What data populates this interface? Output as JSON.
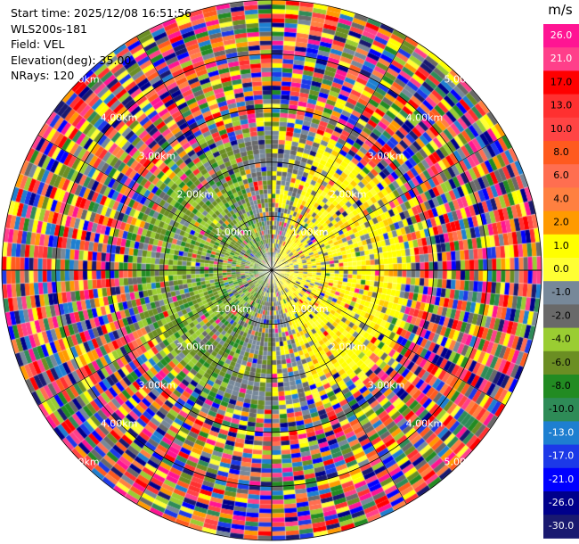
{
  "header": {
    "start_time": "Start time: 2025/12/08 16:51:56",
    "instrument": "WLS200s-181",
    "field": "Field: VEL",
    "elevation": "Elevation(deg): 35.00",
    "nrays": "NRays: 120"
  },
  "chart_data": {
    "type": "heatmap",
    "projection": "polar-ppi",
    "field": "VEL",
    "elevation_deg": 35.0,
    "nrays": 120,
    "range_rings_km": [
      1,
      2,
      3,
      4,
      5
    ],
    "ring_labels": [
      "1.00km",
      "2.00km",
      "3.00km",
      "4.00km",
      "5.00km"
    ],
    "max_range_km": 5.0,
    "azimuth_lines_deg": [
      0,
      30,
      60,
      90,
      120,
      150,
      180,
      210,
      240,
      270,
      300,
      330
    ],
    "colorbar": {
      "unit": "m/s",
      "ticks": [
        "26.0",
        "21.0",
        "17.0",
        "13.0",
        "10.0",
        "8.0",
        "6.0",
        "4.0",
        "2.0",
        "1.0",
        "0.0",
        "-1.0",
        "-2.0",
        "-4.0",
        "-6.0",
        "-8.0",
        "-10.0",
        "-13.0",
        "-17.0",
        "-21.0",
        "-26.0",
        "-30.0"
      ],
      "colors": [
        "#ff1493",
        "#ff3f8a",
        "#ff0000",
        "#ff3030",
        "#ff4444",
        "#ff5a1e",
        "#ff6e50",
        "#ff8040",
        "#ff9a00",
        "#ffff00",
        "#ffff33",
        "#778899",
        "#696969",
        "#9acd32",
        "#6b8e23",
        "#228b22",
        "#2e8b57",
        "#1e7fd0",
        "#1c39e8",
        "#0000ff",
        "#00008b",
        "#191970"
      ]
    },
    "visible_pattern": {
      "near_field_km": 2.6,
      "positive_velocity_sector_deg": [
        20,
        160
      ],
      "negative_velocity_sector_deg": [
        200,
        340
      ]
    }
  }
}
